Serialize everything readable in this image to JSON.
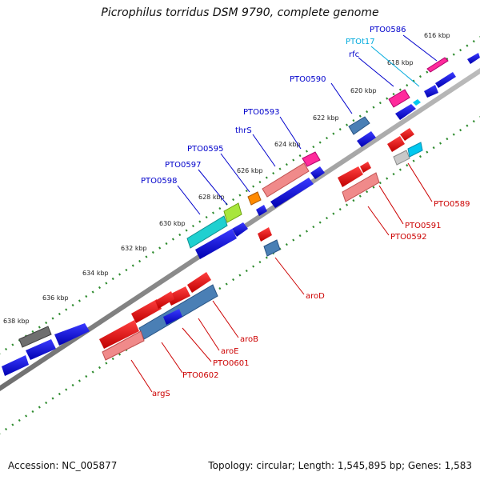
{
  "title": "Picrophilus torridus DSM 9790, complete genome",
  "footer": {
    "accession": "Accession: NC_005877",
    "topology": "Topology: circular; Length: 1,545,895 bp; Genes: 1,583"
  },
  "colors": {
    "forward": "#0000ee",
    "reverse": "#ee0000",
    "rna": "#00bfe8",
    "backbone": "#8c8c8c",
    "dots": "#2e8b2e",
    "label_forward": "#0000cc",
    "label_reverse": "#cc0000",
    "label_rna": "#00aadd"
  },
  "ticks": [
    "616 kbp",
    "618 kbp",
    "620 kbp",
    "622 kbp",
    "624 kbp",
    "626 kbp",
    "628 kbp",
    "630 kbp",
    "632 kbp",
    "634 kbp",
    "636 kbp",
    "638 kbp"
  ],
  "labels_top": [
    "PTO0586",
    "PTOt17",
    "rfc",
    "PTO0590",
    "PTO0593",
    "thrS",
    "PTO0595",
    "PTO0597",
    "PTO0598"
  ],
  "labels_bottom": [
    "PTO0589",
    "PTO0591",
    "PTO0592",
    "aroD",
    "aroB",
    "aroE",
    "PTO0601",
    "PTO0602",
    "argS"
  ]
}
